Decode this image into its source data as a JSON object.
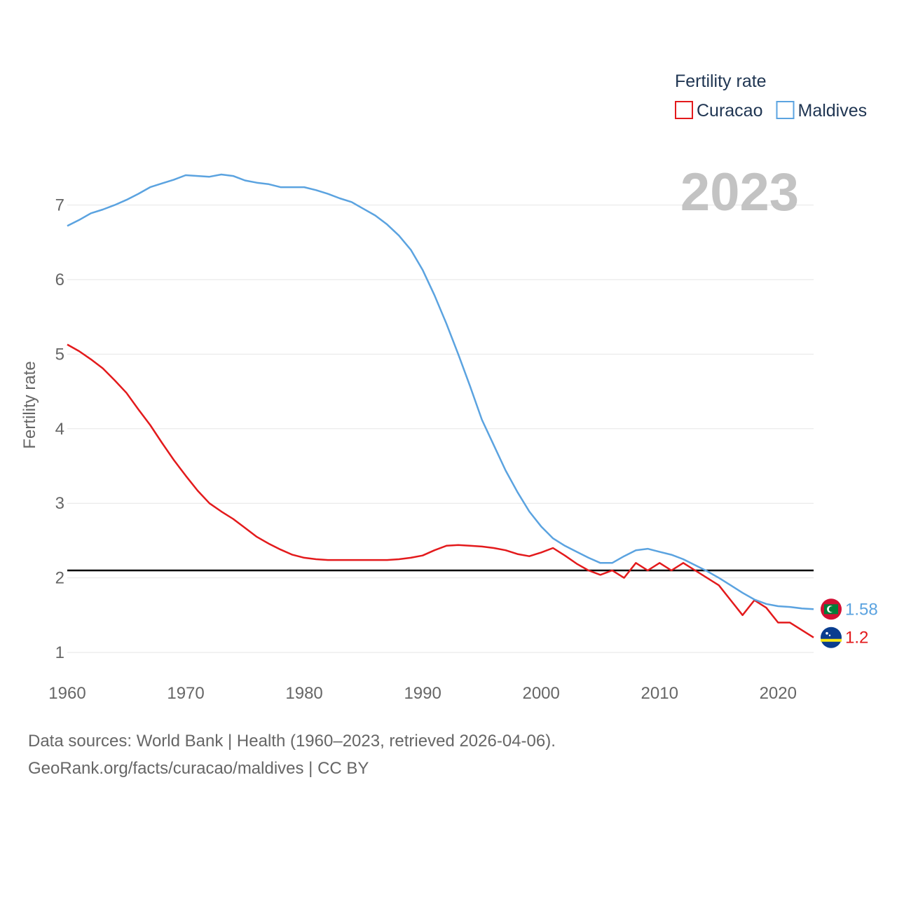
{
  "chart_data": {
    "type": "line",
    "title": "",
    "xlabel": "",
    "ylabel": "Fertility rate",
    "xlim": [
      1960,
      2023
    ],
    "ylim": [
      0.6,
      7.8
    ],
    "x_ticks": [
      1960,
      1970,
      1980,
      1990,
      2000,
      2010,
      2020
    ],
    "y_ticks": [
      1,
      2,
      3,
      4,
      5,
      6,
      7
    ],
    "grid": true,
    "current_year": "2023",
    "legend": {
      "title": "Fertility rate",
      "position": "top-right"
    },
    "reference_line": {
      "y": 2.1,
      "color": "#000000"
    },
    "x": [
      1960,
      1961,
      1962,
      1963,
      1964,
      1965,
      1966,
      1967,
      1968,
      1969,
      1970,
      1971,
      1972,
      1973,
      1974,
      1975,
      1976,
      1977,
      1978,
      1979,
      1980,
      1981,
      1982,
      1983,
      1984,
      1985,
      1986,
      1987,
      1988,
      1989,
      1990,
      1991,
      1992,
      1993,
      1994,
      1995,
      1996,
      1997,
      1998,
      1999,
      2000,
      2001,
      2002,
      2003,
      2004,
      2005,
      2006,
      2007,
      2008,
      2009,
      2010,
      2011,
      2012,
      2013,
      2014,
      2015,
      2016,
      2017,
      2018,
      2019,
      2020,
      2021,
      2022,
      2023
    ],
    "series": [
      {
        "name": "Curacao",
        "color": "#e31a1c",
        "end_label": "1.2",
        "flag": "curacao-flag",
        "values": [
          5.13,
          5.04,
          4.93,
          4.81,
          4.65,
          4.48,
          4.26,
          4.05,
          3.81,
          3.58,
          3.37,
          3.17,
          3.0,
          2.89,
          2.79,
          2.67,
          2.55,
          2.46,
          2.38,
          2.31,
          2.27,
          2.25,
          2.24,
          2.24,
          2.24,
          2.24,
          2.24,
          2.24,
          2.25,
          2.27,
          2.3,
          2.37,
          2.43,
          2.44,
          2.43,
          2.42,
          2.4,
          2.37,
          2.32,
          2.29,
          2.34,
          2.4,
          2.3,
          2.19,
          2.1,
          2.04,
          2.1,
          2.0,
          2.2,
          2.1,
          2.2,
          2.1,
          2.2,
          2.1,
          2.0,
          1.9,
          1.7,
          1.5,
          1.7,
          1.6,
          1.4,
          1.4,
          1.3,
          1.2
        ]
      },
      {
        "name": "Maldives",
        "color": "#5ba3e0",
        "end_label": "1.58",
        "flag": "maldives-flag",
        "values": [
          6.72,
          6.8,
          6.89,
          6.94,
          7.0,
          7.07,
          7.15,
          7.24,
          7.29,
          7.34,
          7.4,
          7.39,
          7.38,
          7.41,
          7.39,
          7.33,
          7.3,
          7.28,
          7.24,
          7.24,
          7.24,
          7.2,
          7.15,
          7.09,
          7.04,
          6.95,
          6.86,
          6.74,
          6.59,
          6.4,
          6.13,
          5.79,
          5.41,
          5.0,
          4.57,
          4.12,
          3.78,
          3.44,
          3.15,
          2.89,
          2.69,
          2.53,
          2.43,
          2.35,
          2.27,
          2.2,
          2.2,
          2.29,
          2.37,
          2.39,
          2.35,
          2.31,
          2.25,
          2.17,
          2.09,
          2.0,
          1.9,
          1.8,
          1.71,
          1.65,
          1.62,
          1.61,
          1.59,
          1.58
        ]
      }
    ]
  },
  "footer": {
    "source_line": "Data sources: World Bank | Health (1960–2023, retrieved 2026-04-06).",
    "url_line": "GeoRank.org/facts/curacao/maldives | CC BY"
  }
}
